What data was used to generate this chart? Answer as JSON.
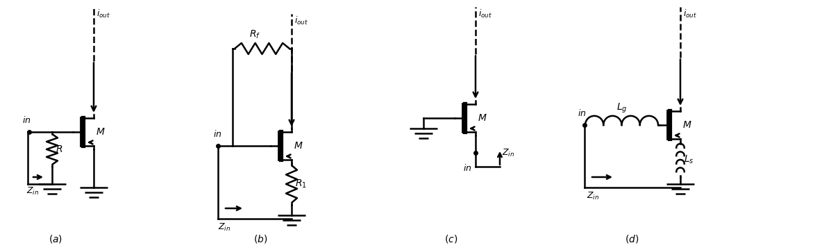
{
  "bg_color": "#ffffff",
  "line_color": "#000000",
  "lw": 1.8,
  "fig_width": 12.1,
  "fig_height": 3.6,
  "dpi": 100
}
